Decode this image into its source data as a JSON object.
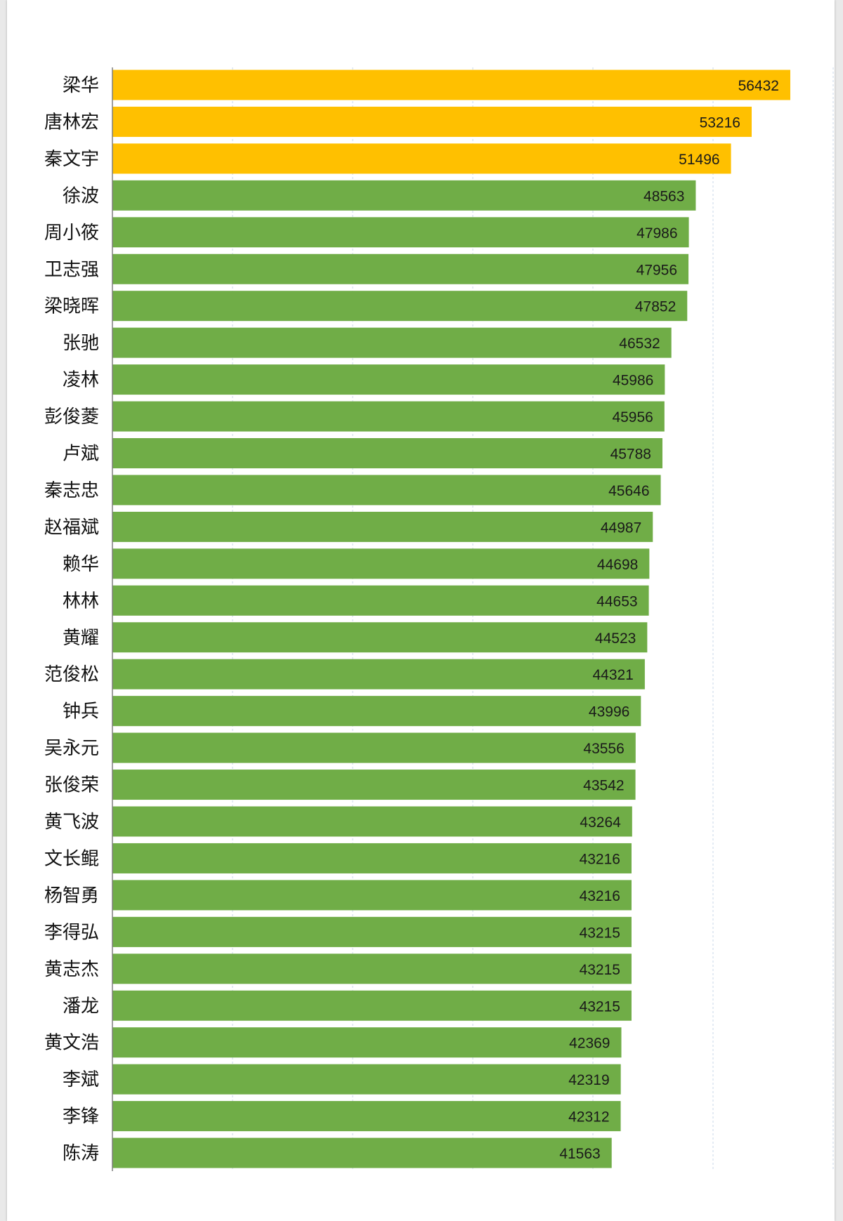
{
  "colors": {
    "highlight": "#ffc000",
    "normal": "#70ad47",
    "axis": "#7f7f7f",
    "grid": "#c9d7ea"
  },
  "chart_data": {
    "type": "bar",
    "orientation": "horizontal",
    "title": "",
    "xlabel": "",
    "ylabel": "",
    "xlim": [
      0,
      60000
    ],
    "grid": "vertical dashed",
    "legend": "none",
    "highlight_top_n": 3,
    "data_labels": "inside-end",
    "categories": [
      "梁华",
      "唐林宏",
      "秦文宇",
      "徐波",
      "周小筱",
      "卫志强",
      "梁晓晖",
      "张驰",
      "凌林",
      "彭俊菱",
      "卢斌",
      "秦志忠",
      "赵福斌",
      "赖华",
      "林林",
      "黄耀",
      "范俊松",
      "钟兵",
      "吴永元",
      "张俊荣",
      "黄飞波",
      "文长鲲",
      "杨智勇",
      "李得弘",
      "黄志杰",
      "潘龙",
      "黄文浩",
      "李斌",
      "李锋",
      "陈涛"
    ],
    "values": [
      56432,
      53216,
      51496,
      48563,
      47986,
      47956,
      47852,
      46532,
      45986,
      45956,
      45788,
      45646,
      44987,
      44698,
      44653,
      44523,
      44321,
      43996,
      43556,
      43542,
      43264,
      43216,
      43216,
      43215,
      43215,
      43215,
      42369,
      42319,
      42312,
      41563
    ]
  }
}
